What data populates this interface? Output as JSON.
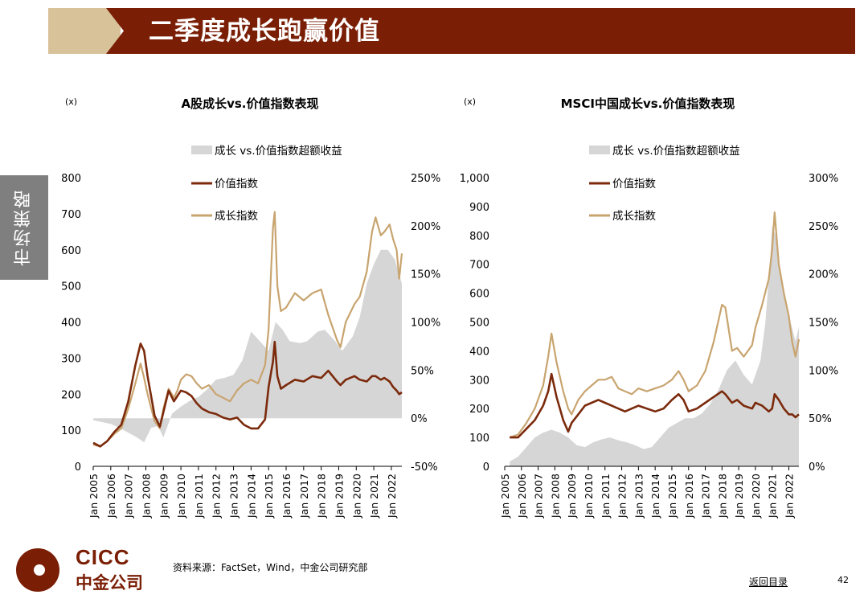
{
  "header": {
    "title": "二季度成长跑赢价值"
  },
  "side_tab": {
    "label": "市场策略"
  },
  "footer": {
    "source": "资料来源：FactSet，Wind，中金公司研究部",
    "back_link": "返回目录",
    "page_number": "42"
  },
  "logo": {
    "en": "CICC",
    "cn": "中金公司"
  },
  "colors": {
    "header": "#7a1e05",
    "value": "#7b2a0c",
    "growth": "#c8a46f",
    "excess": "#d6d6d6"
  },
  "chart_data": [
    {
      "type": "line",
      "title": "A股成长vs.价值指数表现",
      "unit_label": "(x)",
      "legend": {
        "excess": "成长 vs.价值指数超额收益",
        "value": "价值指数",
        "growth": "成长指数"
      },
      "left_axis": {
        "ylim": [
          0,
          800
        ],
        "ticks": [
          "0",
          "100",
          "200",
          "300",
          "400",
          "500",
          "600",
          "700",
          "800"
        ]
      },
      "right_axis": {
        "ylim": [
          -50,
          250
        ],
        "ticks": [
          "-50%",
          "0%",
          "50%",
          "100%",
          "150%",
          "200%",
          "250%"
        ]
      },
      "xlim": [
        2005.0,
        2022.6
      ],
      "x_ticks": [
        "Jan 2005",
        "Jan 2006",
        "Jan 2007",
        "Jan 2008",
        "Jan 2009",
        "Jan 2010",
        "Jan 2011",
        "Jan 2012",
        "Jan 2013",
        "Jan 2014",
        "Jan 2015",
        "Jan 2016",
        "Jan 2017",
        "Jan 2018",
        "Jan 2019",
        "Jan 2020",
        "Jan 2021",
        "Jan 2022"
      ],
      "series": [
        {
          "key": "growth",
          "name": "成长指数",
          "x": [
            2005.0,
            2005.4,
            2005.8,
            2006.2,
            2006.6,
            2007.0,
            2007.4,
            2007.7,
            2007.9,
            2008.1,
            2008.5,
            2008.8,
            2009.0,
            2009.3,
            2009.6,
            2009.8,
            2010.0,
            2010.3,
            2010.6,
            2010.9,
            2011.2,
            2011.6,
            2012.0,
            2012.4,
            2012.8,
            2013.2,
            2013.6,
            2014.0,
            2014.4,
            2014.8,
            2015.0,
            2015.25,
            2015.35,
            2015.5,
            2015.7,
            2016.0,
            2016.5,
            2017.0,
            2017.5,
            2018.0,
            2018.4,
            2018.9,
            2019.1,
            2019.4,
            2019.9,
            2020.2,
            2020.6,
            2020.9,
            2021.1,
            2021.4,
            2021.6,
            2021.9,
            2022.1,
            2022.3,
            2022.45,
            2022.6
          ],
          "values": [
            60,
            55,
            70,
            90,
            105,
            160,
            230,
            285,
            245,
            200,
            125,
            105,
            160,
            215,
            190,
            210,
            240,
            255,
            250,
            230,
            215,
            225,
            200,
            190,
            180,
            210,
            230,
            240,
            230,
            280,
            380,
            660,
            705,
            500,
            430,
            440,
            480,
            460,
            480,
            490,
            420,
            350,
            330,
            400,
            450,
            470,
            540,
            650,
            690,
            640,
            650,
            670,
            630,
            600,
            520,
            590
          ]
        },
        {
          "key": "value",
          "name": "价值指数",
          "x": [
            2005.0,
            2005.4,
            2005.8,
            2006.2,
            2006.6,
            2007.0,
            2007.4,
            2007.7,
            2007.9,
            2008.1,
            2008.5,
            2008.8,
            2009.0,
            2009.3,
            2009.6,
            2009.8,
            2010.0,
            2010.3,
            2010.6,
            2010.9,
            2011.2,
            2011.6,
            2012.0,
            2012.4,
            2012.8,
            2013.2,
            2013.6,
            2014.0,
            2014.4,
            2014.8,
            2015.0,
            2015.25,
            2015.35,
            2015.5,
            2015.7,
            2016.0,
            2016.5,
            2017.0,
            2017.5,
            2018.0,
            2018.4,
            2018.9,
            2019.1,
            2019.4,
            2019.9,
            2020.2,
            2020.6,
            2020.9,
            2021.1,
            2021.4,
            2021.6,
            2021.9,
            2022.1,
            2022.3,
            2022.45,
            2022.6
          ],
          "values": [
            65,
            55,
            70,
            95,
            115,
            180,
            280,
            340,
            320,
            250,
            140,
            110,
            150,
            210,
            180,
            195,
            210,
            205,
            195,
            175,
            160,
            150,
            145,
            135,
            130,
            135,
            115,
            105,
            105,
            130,
            220,
            290,
            345,
            250,
            215,
            225,
            240,
            235,
            250,
            245,
            265,
            235,
            225,
            240,
            250,
            240,
            235,
            250,
            250,
            240,
            245,
            235,
            220,
            210,
            200,
            205
          ]
        },
        {
          "key": "excess",
          "name": "成长 vs.价值指数超额收益",
          "x": [
            2005.0,
            2005.5,
            2006.0,
            2006.5,
            2007.0,
            2007.5,
            2007.9,
            2008.3,
            2008.7,
            2009.0,
            2009.5,
            2010.0,
            2010.5,
            2011.0,
            2011.5,
            2012.0,
            2012.5,
            2013.0,
            2013.5,
            2014.0,
            2014.5,
            2015.0,
            2015.4,
            2015.8,
            2016.2,
            2016.8,
            2017.2,
            2017.8,
            2018.2,
            2018.8,
            2019.2,
            2019.8,
            2020.2,
            2020.6,
            2021.0,
            2021.4,
            2021.8,
            2022.2,
            2022.6
          ],
          "values": [
            -2,
            -4,
            -6,
            -10,
            -15,
            -20,
            -25,
            -10,
            -8,
            -20,
            5,
            12,
            18,
            22,
            30,
            40,
            42,
            45,
            60,
            90,
            80,
            70,
            100,
            92,
            80,
            78,
            80,
            90,
            92,
            80,
            70,
            85,
            105,
            140,
            160,
            175,
            175,
            165,
            140
          ]
        }
      ]
    },
    {
      "type": "line",
      "title": "MSCI中国成长vs.价值指数表现",
      "unit_label": "(x)",
      "legend": {
        "excess": "成长 vs.价值指数超额收益",
        "value": "价值指数",
        "growth": "成长指数"
      },
      "left_axis": {
        "ylim": [
          0,
          1000
        ],
        "ticks": [
          "0",
          "100",
          "200",
          "300",
          "400",
          "500",
          "600",
          "700",
          "800",
          "900",
          "1,000"
        ]
      },
      "right_axis": {
        "ylim": [
          0,
          300
        ],
        "ticks": [
          "0%",
          "50%",
          "100%",
          "150%",
          "200%",
          "250%",
          "300%"
        ]
      },
      "xlim": [
        2005.0,
        2022.6
      ],
      "x_ticks": [
        "Jan 2005",
        "Jan 2006",
        "Jan 2007",
        "Jan 2008",
        "Jan 2009",
        "Jan 2010",
        "Jan 2011",
        "Jan 2012",
        "Jan 2013",
        "Jan 2014",
        "Jan 2015",
        "Jan 2016",
        "Jan 2017",
        "Jan 2018",
        "Jan 2019",
        "Jan 2020",
        "Jan 2021",
        "Jan 2022"
      ],
      "series": [
        {
          "key": "growth",
          "name": "成长指数",
          "x": [
            2005.3,
            2005.8,
            2006.3,
            2006.8,
            2007.3,
            2007.6,
            2007.8,
            2008.1,
            2008.5,
            2008.8,
            2009.0,
            2009.4,
            2009.8,
            2010.2,
            2010.6,
            2011.0,
            2011.4,
            2011.8,
            2012.2,
            2012.6,
            2013.0,
            2013.5,
            2014.0,
            2014.5,
            2015.0,
            2015.4,
            2015.7,
            2016.0,
            2016.5,
            2017.0,
            2017.5,
            2018.0,
            2018.2,
            2018.6,
            2018.9,
            2019.3,
            2019.8,
            2020.0,
            2020.4,
            2020.8,
            2021.0,
            2021.15,
            2021.4,
            2021.7,
            2022.0,
            2022.2,
            2022.4,
            2022.6
          ],
          "values": [
            100,
            110,
            150,
            200,
            280,
            380,
            460,
            360,
            260,
            200,
            180,
            230,
            260,
            280,
            300,
            300,
            310,
            270,
            260,
            250,
            270,
            260,
            270,
            280,
            300,
            330,
            300,
            260,
            280,
            330,
            430,
            560,
            550,
            400,
            410,
            380,
            420,
            480,
            560,
            650,
            750,
            880,
            700,
            600,
            520,
            430,
            380,
            440
          ]
        },
        {
          "key": "value",
          "name": "价值指数",
          "x": [
            2005.3,
            2005.8,
            2006.3,
            2006.8,
            2007.3,
            2007.6,
            2007.8,
            2008.1,
            2008.5,
            2008.8,
            2009.0,
            2009.4,
            2009.8,
            2010.2,
            2010.6,
            2011.0,
            2011.4,
            2011.8,
            2012.2,
            2012.6,
            2013.0,
            2013.5,
            2014.0,
            2014.5,
            2015.0,
            2015.4,
            2015.7,
            2016.0,
            2016.5,
            2017.0,
            2017.5,
            2018.0,
            2018.2,
            2018.6,
            2018.9,
            2019.3,
            2019.8,
            2020.0,
            2020.4,
            2020.8,
            2021.0,
            2021.15,
            2021.4,
            2021.7,
            2022.0,
            2022.2,
            2022.4,
            2022.6
          ],
          "values": [
            100,
            100,
            130,
            160,
            210,
            260,
            320,
            240,
            160,
            120,
            150,
            180,
            210,
            220,
            230,
            220,
            210,
            200,
            190,
            200,
            210,
            200,
            190,
            200,
            230,
            250,
            230,
            190,
            200,
            220,
            240,
            260,
            250,
            220,
            230,
            210,
            200,
            220,
            210,
            190,
            200,
            250,
            230,
            200,
            180,
            180,
            170,
            180
          ]
        },
        {
          "key": "excess",
          "name": "成长 vs.价值指数超额收益",
          "x": [
            2005.3,
            2005.8,
            2006.3,
            2006.8,
            2007.3,
            2007.8,
            2008.3,
            2008.8,
            2009.3,
            2009.8,
            2010.3,
            2010.8,
            2011.3,
            2011.8,
            2012.3,
            2012.8,
            2013.3,
            2013.8,
            2014.3,
            2014.8,
            2015.3,
            2015.8,
            2016.3,
            2016.8,
            2017.3,
            2017.8,
            2018.3,
            2018.8,
            2019.3,
            2019.8,
            2020.3,
            2020.6,
            2020.9,
            2021.0,
            2021.2,
            2021.5,
            2021.8,
            2022.1,
            2022.4,
            2022.6
          ],
          "values": [
            5,
            10,
            20,
            30,
            35,
            38,
            35,
            30,
            22,
            20,
            25,
            28,
            30,
            27,
            25,
            22,
            18,
            20,
            30,
            40,
            45,
            50,
            50,
            55,
            65,
            80,
            100,
            110,
            95,
            85,
            110,
            150,
            220,
            250,
            240,
            200,
            175,
            150,
            130,
            145
          ]
        }
      ]
    }
  ]
}
